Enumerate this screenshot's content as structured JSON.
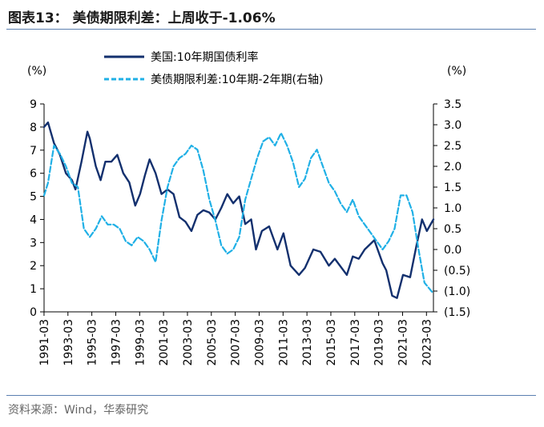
{
  "title": "图表13： 美债期限利差：上周收于-1.06%",
  "source": "资料来源：Wind，华泰研究",
  "chart_data": {
    "type": "line",
    "left_unit": "(%)",
    "right_unit": "(%)",
    "x_ticks": [
      "1991-03",
      "1993-03",
      "1995-03",
      "1997-03",
      "1999-03",
      "2001-03",
      "2003-03",
      "2005-03",
      "2007-03",
      "2009-03",
      "2011-03",
      "2013-03",
      "2015-03",
      "2017-03",
      "2019-03",
      "2021-03",
      "2023-03"
    ],
    "left_ticks": [
      "0",
      "1",
      "2",
      "3",
      "4",
      "5",
      "6",
      "7",
      "8",
      "9"
    ],
    "right_ticks": [
      "3.5",
      "3.0",
      "2.5",
      "2.0",
      "1.5",
      "1.0",
      "0.5",
      "0.0",
      "(0.5)",
      "(1.0)",
      "(1.5)"
    ],
    "ylim_left": [
      0,
      9
    ],
    "ylim_right": [
      -1.5,
      3.5
    ],
    "xlim": [
      1991.17,
      2023.75
    ],
    "legend": "top-center",
    "colors": {
      "series1": "#13306e",
      "series2": "#20b0e6"
    },
    "series": [
      {
        "name": "美国:10年期国债利率",
        "axis": "left",
        "style": "solid",
        "x": [
          1991.17,
          1991.5,
          1992.0,
          1992.5,
          1993.0,
          1993.5,
          1993.8,
          1994.3,
          1994.8,
          1995.0,
          1995.5,
          1995.9,
          1996.3,
          1996.8,
          1997.3,
          1997.8,
          1998.3,
          1998.8,
          1999.2,
          1999.6,
          2000.0,
          2000.5,
          2001.0,
          2001.5,
          2002.0,
          2002.5,
          2003.0,
          2003.5,
          2004.0,
          2004.5,
          2005.0,
          2005.5,
          2006.0,
          2006.5,
          2007.0,
          2007.5,
          2008.0,
          2008.5,
          2008.9,
          2009.4,
          2010.0,
          2010.7,
          2011.2,
          2011.8,
          2012.5,
          2013.0,
          2013.7,
          2014.3,
          2015.0,
          2015.5,
          2016.5,
          2017.0,
          2017.5,
          2018.0,
          2018.8,
          2019.5,
          2019.8,
          2020.3,
          2020.7,
          2021.2,
          2021.8,
          2022.3,
          2022.8,
          2023.2,
          2023.75
        ],
        "values": [
          8.0,
          8.2,
          7.3,
          6.8,
          6.0,
          5.7,
          5.3,
          6.5,
          7.8,
          7.5,
          6.3,
          5.7,
          6.5,
          6.5,
          6.8,
          6.0,
          5.6,
          4.6,
          5.1,
          5.9,
          6.6,
          6.0,
          5.1,
          5.3,
          5.1,
          4.1,
          3.9,
          3.5,
          4.2,
          4.4,
          4.3,
          4.0,
          4.5,
          5.1,
          4.7,
          5.0,
          3.8,
          4.0,
          2.7,
          3.5,
          3.7,
          2.7,
          3.4,
          2.0,
          1.6,
          1.9,
          2.7,
          2.6,
          2.0,
          2.3,
          1.6,
          2.4,
          2.3,
          2.7,
          3.1,
          2.1,
          1.8,
          0.7,
          0.6,
          1.6,
          1.5,
          2.8,
          4.0,
          3.5,
          4.0
        ]
      },
      {
        "name": "美债期限利差:10年期-2年期(右轴)",
        "axis": "right",
        "style": "dashed",
        "x": [
          1991.17,
          1991.5,
          1992.0,
          1992.5,
          1993.0,
          1993.5,
          1994.0,
          1994.5,
          1995.0,
          1995.5,
          1996.0,
          1996.5,
          1997.0,
          1997.5,
          1998.0,
          1998.5,
          1999.0,
          1999.5,
          2000.0,
          2000.5,
          2001.0,
          2001.5,
          2002.0,
          2002.5,
          2003.0,
          2003.5,
          2004.0,
          2004.5,
          2005.0,
          2005.5,
          2006.0,
          2006.5,
          2007.0,
          2007.5,
          2008.0,
          2008.5,
          2009.0,
          2009.5,
          2010.0,
          2010.5,
          2011.0,
          2011.5,
          2012.0,
          2012.5,
          2013.0,
          2013.5,
          2014.0,
          2014.5,
          2015.0,
          2015.5,
          2016.0,
          2016.5,
          2017.0,
          2017.5,
          2018.0,
          2018.5,
          2019.0,
          2019.5,
          2020.0,
          2020.5,
          2021.0,
          2021.5,
          2022.0,
          2022.5,
          2023.0,
          2023.75
        ],
        "values": [
          1.3,
          1.6,
          2.5,
          2.3,
          2.0,
          1.6,
          1.5,
          0.5,
          0.3,
          0.5,
          0.8,
          0.6,
          0.6,
          0.5,
          0.2,
          0.1,
          0.3,
          0.2,
          0.0,
          -0.3,
          0.7,
          1.5,
          2.0,
          2.2,
          2.3,
          2.5,
          2.4,
          1.9,
          1.2,
          0.7,
          0.1,
          -0.1,
          0.0,
          0.3,
          1.2,
          1.7,
          2.2,
          2.6,
          2.7,
          2.5,
          2.8,
          2.5,
          2.1,
          1.5,
          1.7,
          2.2,
          2.4,
          2.0,
          1.6,
          1.4,
          1.1,
          0.9,
          1.2,
          0.8,
          0.6,
          0.4,
          0.2,
          0.0,
          0.2,
          0.5,
          1.3,
          1.3,
          0.9,
          0.0,
          -0.8,
          -1.06
        ]
      }
    ]
  }
}
